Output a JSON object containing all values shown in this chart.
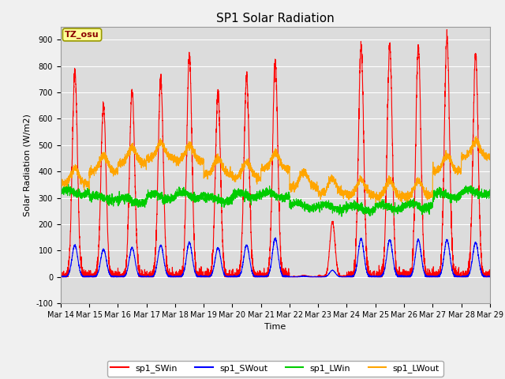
{
  "title": "SP1 Solar Radiation",
  "xlabel": "Time",
  "ylabel": "Solar Radiation (W/m2)",
  "ylim": [
    -100,
    950
  ],
  "yticks": [
    -100,
    0,
    100,
    200,
    300,
    400,
    500,
    600,
    700,
    800,
    900
  ],
  "colors": {
    "sp1_SWin": "#FF0000",
    "sp1_SWout": "#0000FF",
    "sp1_LWin": "#00CC00",
    "sp1_LWout": "#FFA500"
  },
  "legend_labels": [
    "sp1_SWin",
    "sp1_SWout",
    "sp1_LWin",
    "sp1_LWout"
  ],
  "tz_label": "TZ_osu",
  "bg_color": "#DCDCDC",
  "fig_bg_color": "#F0F0F0",
  "n_days": 15,
  "points_per_day": 288,
  "sw_in_peaks": [
    780,
    650,
    710,
    750,
    840,
    700,
    760,
    820,
    5,
    210,
    875,
    880,
    870,
    910,
    845
  ],
  "sw_out_peaks": [
    120,
    105,
    110,
    120,
    130,
    110,
    120,
    145,
    2,
    25,
    145,
    140,
    140,
    140,
    130
  ],
  "lw_in_mean": [
    320,
    300,
    290,
    305,
    310,
    295,
    310,
    310,
    270,
    265,
    260,
    265,
    270,
    310,
    320
  ],
  "lw_out_mean": [
    350,
    400,
    430,
    450,
    440,
    390,
    375,
    410,
    340,
    315,
    310,
    305,
    305,
    400,
    455
  ]
}
